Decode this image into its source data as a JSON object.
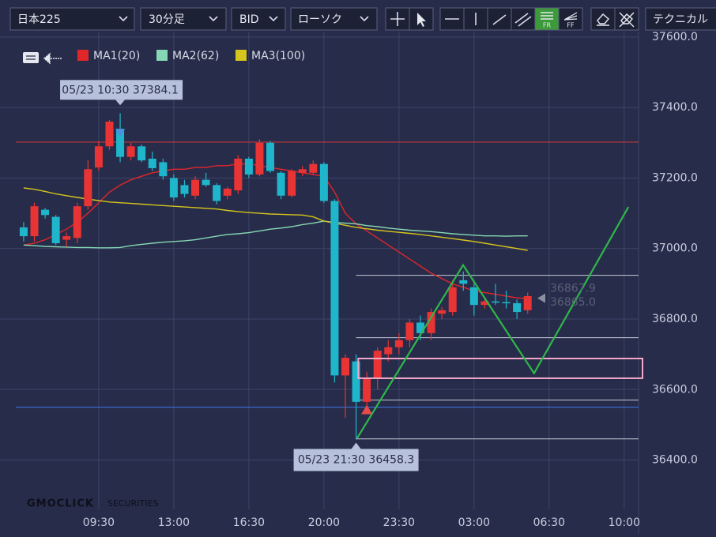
{
  "toolbar": {
    "symbol": "日本225",
    "interval": "30分足",
    "price_type": "BID",
    "chart_type": "ローソク",
    "fr": "FR",
    "ff": "FF",
    "technical": "テクニカル"
  },
  "logo": {
    "brand": "GMOCLICK",
    "suffix": "SECURITIES"
  },
  "chart_data": {
    "type": "candlestick",
    "x": [
      6,
      6.5,
      7,
      7.5,
      8,
      8.5,
      9,
      9.5,
      10,
      10.5,
      11,
      11.5,
      12,
      12.5,
      13,
      13.5,
      14,
      14.5,
      15,
      15.5,
      16,
      16.5,
      17,
      17.5,
      18,
      18.5,
      19,
      19.5,
      20,
      20.5,
      21,
      21.5,
      22,
      22.5,
      23,
      23.5,
      24,
      24.5,
      25,
      25.5,
      26,
      26.5,
      27,
      27.5,
      28,
      28.5,
      29,
      29.5
    ],
    "open": [
      37060,
      37035,
      37110,
      37090,
      37025,
      37030,
      37120,
      37230,
      37290,
      37340,
      37260,
      37290,
      37255,
      37245,
      37200,
      37180,
      37150,
      37195,
      37180,
      37150,
      37165,
      37255,
      37210,
      37300,
      37215,
      37150,
      37215,
      37215,
      37240,
      37135,
      36640,
      36680,
      36565,
      36630,
      36700,
      36720,
      36740,
      36790,
      36760,
      36815,
      36820,
      36910,
      36890,
      36840,
      36850,
      36848,
      36845,
      36825
    ],
    "high": [
      37075,
      37130,
      37115,
      37095,
      37045,
      37130,
      37250,
      37305,
      37365,
      37384.1,
      37300,
      37295,
      37275,
      37255,
      37210,
      37195,
      37205,
      37215,
      37185,
      37175,
      37265,
      37260,
      37310,
      37305,
      37220,
      37225,
      37235,
      37250,
      37245,
      37140,
      36700,
      36700,
      36650,
      36720,
      36740,
      36760,
      36800,
      36810,
      36830,
      36835,
      36910,
      36935,
      36910,
      36860,
      36900,
      36880,
      36855,
      36875
    ],
    "low": [
      37020,
      37020,
      37085,
      37010,
      37005,
      37015,
      37110,
      37220,
      37280,
      37245,
      37250,
      37245,
      37220,
      37195,
      37135,
      37145,
      37140,
      37175,
      37125,
      37140,
      37155,
      37200,
      37205,
      37215,
      37140,
      37145,
      37205,
      37210,
      37130,
      36620,
      36520,
      36458.3,
      36540,
      36600,
      36680,
      36700,
      36720,
      36740,
      36740,
      36800,
      36810,
      36880,
      36810,
      36830,
      36840,
      36830,
      36800,
      36815
    ],
    "close": [
      37035,
      37120,
      37095,
      37015,
      37035,
      37120,
      37225,
      37290,
      37360,
      37260,
      37290,
      37250,
      37228,
      37205,
      37145,
      37155,
      37195,
      37180,
      37135,
      37170,
      37255,
      37210,
      37300,
      37220,
      37150,
      37220,
      37225,
      37240,
      37135,
      36640,
      36690,
      36565,
      36630,
      36710,
      36720,
      36740,
      36790,
      36760,
      36820,
      36825,
      36890,
      36900,
      36840,
      36850,
      36848,
      36845,
      36820,
      36865
    ],
    "up_color": "#e83434",
    "down_color": "#1fb6cc",
    "series": [
      {
        "name": "MA1(20)",
        "color": "#e0262a",
        "values": [
          37010,
          37015,
          37025,
          37040,
          37055,
          37075,
          37100,
          37130,
          37160,
          37180,
          37195,
          37205,
          37215,
          37220,
          37225,
          37225,
          37230,
          37230,
          37235,
          37235,
          37240,
          37240,
          37235,
          37230,
          37225,
          37220,
          37215,
          37210,
          37205,
          37160,
          37100,
          37070,
          37050,
          37030,
          37010,
          36990,
          36970,
          36950,
          36930,
          36915,
          36900,
          36890,
          36880,
          36875,
          36870,
          36865,
          36860,
          36858
        ]
      },
      {
        "name": "MA2(62)",
        "color": "#86d8b4",
        "values": [
          37010,
          37008,
          37006,
          37005,
          37004,
          37003,
          37003,
          37002,
          37002,
          37003,
          37008,
          37012,
          37015,
          37018,
          37020,
          37022,
          37025,
          37030,
          37035,
          37040,
          37042,
          37045,
          37050,
          37055,
          37058,
          37062,
          37068,
          37072,
          37078,
          37074,
          37072,
          37070,
          37065,
          37062,
          37058,
          37055,
          37052,
          37050,
          37048,
          37045,
          37042,
          37040,
          37038,
          37036,
          37036,
          37035,
          37036,
          37036
        ]
      },
      {
        "name": "MA3(100)",
        "color": "#d6c51c",
        "values": [
          37172,
          37168,
          37162,
          37155,
          37150,
          37145,
          37140,
          37136,
          37132,
          37130,
          37128,
          37126,
          37124,
          37122,
          37120,
          37118,
          37116,
          37114,
          37112,
          37108,
          37105,
          37102,
          37100,
          37098,
          37097,
          37096,
          37095,
          37090,
          37078,
          37072,
          37066,
          37060,
          37056,
          37052,
          37049,
          37046,
          37043,
          37040,
          37036,
          37032,
          37028,
          37024,
          37020,
          37015,
          37010,
          37005,
          37000,
          36995
        ]
      }
    ],
    "xlim": [
      5.45,
      34.67
    ],
    "xticks": [
      {
        "value": 9.5,
        "label": "09:30"
      },
      {
        "value": 13,
        "label": "13:00"
      },
      {
        "value": 16.5,
        "label": "16:30"
      },
      {
        "value": 20,
        "label": "20:00"
      },
      {
        "value": 23.5,
        "label": "23:30"
      },
      {
        "value": 27,
        "label": "03:00"
      },
      {
        "value": 30.5,
        "label": "06:30"
      },
      {
        "value": 34,
        "label": "10:00"
      }
    ],
    "ylim": [
      36260,
      37620
    ],
    "yticks": [
      {
        "value": 36400,
        "label": "36400.0"
      },
      {
        "value": 36600,
        "label": "36600.0"
      },
      {
        "value": 36800,
        "label": "36800.0"
      },
      {
        "value": 37000,
        "label": "37000.0"
      },
      {
        "value": 37200,
        "label": "37200.0"
      },
      {
        "value": 37400,
        "label": "37400.0"
      },
      {
        "value": 37600,
        "label": "37600.0"
      }
    ],
    "grid": true,
    "hlines": [
      {
        "value": 37302,
        "color": "#c0393b"
      },
      {
        "value": 36550,
        "color": "#3a6fd8"
      }
    ],
    "level_lines": {
      "start": 21.5,
      "values": [
        36924,
        36747,
        36570,
        36460
      ]
    },
    "zone": {
      "start": 21.6,
      "values": [
        36632,
        36688
      ],
      "color": "#f4a7c8"
    },
    "zigzag": {
      "x": [
        21.55,
        26.49,
        29.8,
        34.2
      ],
      "values": [
        36462,
        36953,
        36646,
        37118
      ],
      "color": "#2fb84a"
    },
    "high_label": "05/23 10:30 37384.1",
    "low_label": "05/23 21:30 36458.3",
    "last_prices": [
      36867.9,
      36865
    ],
    "last_price_labels": [
      "36867.9",
      "36865.0"
    ]
  }
}
